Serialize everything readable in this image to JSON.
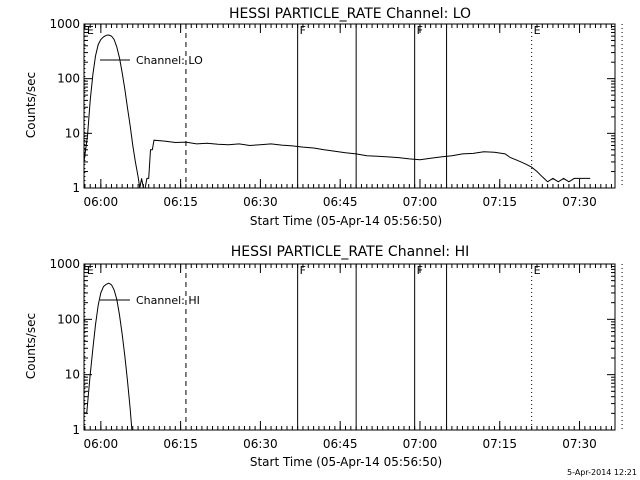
{
  "footer": {
    "timestamp": "5-Apr-2014 12:21"
  },
  "chart_data": [
    {
      "type": "line",
      "title": "HESSI PARTICLE_RATE Channel: LO",
      "xlabel": "Start Time (05-Apr-14 05:56:50)",
      "ylabel": "Counts/sec",
      "yscale": "log",
      "xlim": [
        "05:56:50",
        "07:36:40"
      ],
      "ylim": [
        1,
        1000
      ],
      "xticks": [
        "06:00",
        "06:15",
        "06:30",
        "06:45",
        "07:00",
        "07:15",
        "07:30"
      ],
      "yticks": [
        "1",
        "10",
        "100",
        "1000"
      ],
      "grid": false,
      "legend_position": "upper-left",
      "series": [
        {
          "name": "Channel: LO",
          "points": [
            [
              "05:56:50",
              3
            ],
            [
              "05:57:30",
              9
            ],
            [
              "05:58:00",
              40
            ],
            [
              "05:58:30",
              120
            ],
            [
              "05:59:00",
              260
            ],
            [
              "05:59:30",
              420
            ],
            [
              "06:00:00",
              520
            ],
            [
              "06:00:30",
              580
            ],
            [
              "06:01:00",
              620
            ],
            [
              "06:01:30",
              630
            ],
            [
              "06:02:00",
              600
            ],
            [
              "06:02:30",
              520
            ],
            [
              "06:03:00",
              380
            ],
            [
              "06:03:30",
              240
            ],
            [
              "06:04:00",
              130
            ],
            [
              "06:04:30",
              65
            ],
            [
              "06:05:00",
              30
            ],
            [
              "06:05:30",
              14
            ],
            [
              "06:06:00",
              6
            ],
            [
              "06:06:30",
              3
            ],
            [
              "06:07:00",
              1.6
            ],
            [
              "06:07:20",
              1
            ],
            [
              "06:07:40",
              1.5
            ],
            [
              "06:08:00",
              1
            ],
            [
              "06:08:20",
              1
            ],
            [
              "06:08:40",
              1.5
            ],
            [
              "06:09:00",
              1.5
            ],
            [
              "06:09:20",
              5
            ],
            [
              "06:09:40",
              5
            ],
            [
              "06:10:00",
              7.5
            ],
            [
              "06:12:00",
              7.2
            ],
            [
              "06:14:00",
              6.8
            ],
            [
              "06:16:00",
              6.9
            ],
            [
              "06:18:00",
              6.4
            ],
            [
              "06:20:00",
              6.6
            ],
            [
              "06:22:00",
              6.3
            ],
            [
              "06:24:00",
              6.2
            ],
            [
              "06:26:00",
              6.4
            ],
            [
              "06:28:00",
              6.0
            ],
            [
              "06:30:00",
              6.2
            ],
            [
              "06:32:00",
              6.4
            ],
            [
              "06:34:00",
              6.1
            ],
            [
              "06:36:00",
              5.9
            ],
            [
              "06:38:00",
              5.6
            ],
            [
              "06:40:00",
              5.4
            ],
            [
              "06:42:00",
              5.0
            ],
            [
              "06:44:00",
              4.7
            ],
            [
              "06:46:00",
              4.4
            ],
            [
              "06:48:00",
              4.2
            ],
            [
              "06:50:00",
              3.9
            ],
            [
              "06:52:00",
              3.8
            ],
            [
              "06:54:00",
              3.7
            ],
            [
              "06:56:00",
              3.6
            ],
            [
              "06:58:00",
              3.4
            ],
            [
              "07:00:00",
              3.3
            ],
            [
              "07:02:00",
              3.5
            ],
            [
              "07:04:00",
              3.7
            ],
            [
              "07:06:00",
              3.9
            ],
            [
              "07:08:00",
              4.2
            ],
            [
              "07:10:00",
              4.3
            ],
            [
              "07:12:00",
              4.6
            ],
            [
              "07:14:00",
              4.5
            ],
            [
              "07:16:00",
              4.2
            ],
            [
              "07:17:00",
              3.6
            ],
            [
              "07:18:00",
              3.3
            ],
            [
              "07:19:00",
              3.0
            ],
            [
              "07:20:00",
              2.7
            ],
            [
              "07:21:00",
              2.4
            ],
            [
              "07:22:00",
              2.0
            ],
            [
              "07:23:00",
              1.6
            ],
            [
              "07:24:00",
              1.3
            ],
            [
              "07:25:00",
              1.5
            ],
            [
              "07:26:00",
              1.3
            ],
            [
              "07:27:00",
              1.5
            ],
            [
              "07:28:00",
              1.3
            ],
            [
              "07:29:00",
              1.5
            ],
            [
              "07:30:00",
              1.5
            ],
            [
              "07:31:00",
              1.5
            ],
            [
              "07:32:00",
              1.5
            ]
          ]
        }
      ],
      "markers": [
        {
          "time": "05:57:00",
          "label": "E",
          "style": "dotted"
        },
        {
          "time": "06:16:00",
          "label": "",
          "style": "dashed"
        },
        {
          "time": "06:37:00",
          "label": "F",
          "style": "solid"
        },
        {
          "time": "06:48:00",
          "label": "",
          "style": "solid"
        },
        {
          "time": "06:59:00",
          "label": "F",
          "style": "solid"
        },
        {
          "time": "07:05:00",
          "label": "",
          "style": "solid"
        },
        {
          "time": "07:21:00",
          "label": "E",
          "style": "dotted"
        },
        {
          "time": "07:38:00",
          "label": "",
          "style": "dotted"
        }
      ]
    },
    {
      "type": "line",
      "title": "HESSI PARTICLE_RATE Channel: HI",
      "xlabel": "Start Time (05-Apr-14 05:56:50)",
      "ylabel": "Counts/sec",
      "yscale": "log",
      "xlim": [
        "05:56:50",
        "07:36:40"
      ],
      "ylim": [
        1,
        1000
      ],
      "xticks": [
        "06:00",
        "06:15",
        "06:30",
        "06:45",
        "07:00",
        "07:15",
        "07:30"
      ],
      "yticks": [
        "1",
        "10",
        "100",
        "1000"
      ],
      "grid": false,
      "legend_position": "upper-left",
      "series": [
        {
          "name": "Channel: HI",
          "points": [
            [
              "05:57:00",
              2
            ],
            [
              "05:57:20",
              2
            ],
            [
              "05:58:00",
              10
            ],
            [
              "05:58:30",
              30
            ],
            [
              "05:59:00",
              80
            ],
            [
              "05:59:30",
              180
            ],
            [
              "06:00:00",
              300
            ],
            [
              "06:00:30",
              390
            ],
            [
              "06:01:00",
              430
            ],
            [
              "06:01:30",
              450
            ],
            [
              "06:02:00",
              420
            ],
            [
              "06:02:30",
              340
            ],
            [
              "06:03:00",
              230
            ],
            [
              "06:03:30",
              120
            ],
            [
              "06:04:00",
              55
            ],
            [
              "06:04:30",
              22
            ],
            [
              "06:05:00",
              8
            ],
            [
              "06:05:30",
              2.5
            ],
            [
              "06:05:50",
              1
            ]
          ]
        }
      ],
      "markers": [
        {
          "time": "05:57:00",
          "label": "E",
          "style": "dotted"
        },
        {
          "time": "06:16:00",
          "label": "",
          "style": "dashed"
        },
        {
          "time": "06:37:00",
          "label": "F",
          "style": "solid"
        },
        {
          "time": "06:48:00",
          "label": "",
          "style": "solid"
        },
        {
          "time": "06:59:00",
          "label": "F",
          "style": "solid"
        },
        {
          "time": "07:05:00",
          "label": "",
          "style": "solid"
        },
        {
          "time": "07:21:00",
          "label": "E",
          "style": "dotted"
        },
        {
          "time": "07:38:00",
          "label": "",
          "style": "dotted"
        }
      ]
    }
  ]
}
